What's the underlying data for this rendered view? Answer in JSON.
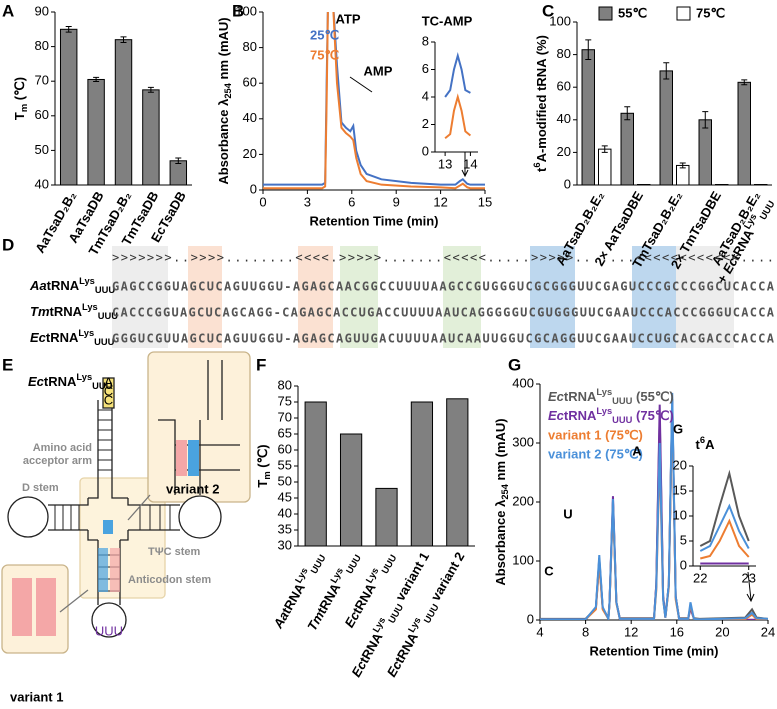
{
  "panel_labels": [
    "A",
    "B",
    "C",
    "D",
    "E",
    "F",
    "G"
  ],
  "chart_data": [
    {
      "type": "bar",
      "ylabel": {
        "base": "T",
        "sub": "m",
        "suffix": " (℃)"
      },
      "categories": [
        "AaTsaD₂B₂",
        "AaTsaDB",
        "TmTsaD₂B₂",
        "TmTsaDB",
        "EcTsaDB"
      ],
      "values": [
        85,
        70.5,
        82,
        67.5,
        47
      ],
      "errors": [
        0.8,
        0.6,
        0.8,
        0.7,
        0.8
      ],
      "color": "#808080",
      "ylim": [
        40,
        90
      ],
      "yticks": [
        40,
        50,
        60,
        70,
        80,
        90
      ]
    },
    {
      "type": "line",
      "xlabel": "Retention Time (min)",
      "ylabel": {
        "base": "Absorbance λ",
        "sub": "254",
        "suffix": " nm (mAU)"
      },
      "annotations": [
        "ATP",
        "AMP"
      ],
      "x": [
        0,
        4,
        4.2,
        4.3,
        4.4,
        4.7,
        5,
        5.3,
        5.6,
        5.9,
        6.1,
        6.3,
        6.6,
        7,
        8,
        10,
        12,
        13,
        13.3,
        13.5,
        13.8,
        14,
        15
      ],
      "series": [
        {
          "name": "25℃",
          "color": "#4472c4",
          "values": [
            3,
            3,
            4,
            60,
            110,
            110,
            70,
            38,
            35,
            33,
            36,
            22,
            14,
            9,
            6,
            4,
            3,
            3,
            5,
            6,
            3.5,
            3,
            3
          ]
        },
        {
          "name": "75℃",
          "color": "#ed7d31",
          "values": [
            1,
            1,
            2,
            50,
            110,
            110,
            60,
            35,
            32,
            30,
            28,
            18,
            9,
            5,
            3,
            2,
            1.5,
            1,
            2.5,
            3.5,
            1.5,
            1,
            1
          ]
        }
      ],
      "xlim": [
        0,
        15
      ],
      "xticks": [
        0,
        3,
        6,
        9,
        12,
        15
      ],
      "ylim": [
        0,
        100
      ],
      "yticks": [
        0,
        20,
        40,
        60,
        80,
        100
      ],
      "inset": {
        "title": "TC-AMP",
        "x": [
          13,
          13.2,
          13.35,
          13.5,
          13.65,
          13.8,
          14
        ],
        "series": [
          {
            "color": "#4472c4",
            "values": [
              4,
              4.5,
              6,
              7,
              6,
              4.5,
              4.3
            ]
          },
          {
            "color": "#ed7d31",
            "values": [
              1,
              1.3,
              3,
              4,
              3,
              1.5,
              1.2
            ]
          }
        ],
        "xlim": [
          12.6,
          14.3
        ],
        "xticks": [
          13,
          14
        ],
        "ylim": [
          0,
          8
        ],
        "yticks": [
          0,
          2,
          4,
          6,
          8
        ]
      }
    },
    {
      "type": "grouped_bar",
      "ylabel": {
        "base": "t",
        "sup": "6",
        "suffix": "A-modified tRNA (%)"
      },
      "categories": [
        "AaTsaD₂B₂E₂",
        "2× AaTsaDBE",
        "TmTsaD₂B₂E₂",
        "2× TmTsaDBE",
        [
          "AaTsaD₂B₂E₂",
          {
            "prefix": "+ ",
            "species": "Ec",
            "base": "tRNA",
            "sup": "Lys",
            "sub": "UUU"
          }
        ]
      ],
      "series": [
        {
          "name": "55℃",
          "color": "#808080",
          "values": [
            83,
            44,
            70,
            40,
            63
          ],
          "errors": [
            6,
            4,
            5,
            5,
            1.5
          ]
        },
        {
          "name": "75℃",
          "color": "#ffffff",
          "values": [
            22,
            0.3,
            12,
            0.3,
            0.3
          ],
          "errors": [
            2,
            0,
            1.5,
            0,
            0
          ]
        }
      ],
      "ylim": [
        0,
        100
      ],
      "yticks": [
        0,
        20,
        40,
        60,
        80,
        100
      ]
    },
    {
      "type": "bar",
      "ylabel": {
        "base": "T",
        "sub": "m",
        "suffix": " (℃)"
      },
      "categories": [
        {
          "species": "Aa",
          "base": "tRNA",
          "sup": "Lys",
          "sub": "UUU"
        },
        {
          "species": "Tm",
          "base": "tRNA",
          "sup": "Lys",
          "sub": "UUU"
        },
        {
          "species": "Ec",
          "base": "tRNA",
          "sup": "Lys",
          "sub": "UUU"
        },
        {
          "species": "Ec",
          "base": "tRNA",
          "sup": "Lys",
          "sub": "UUU",
          "suffix": " variant 1"
        },
        {
          "species": "Ec",
          "base": "tRNA",
          "sup": "Lys",
          "sub": "UUU",
          "suffix": " variant 2"
        }
      ],
      "values": [
        75,
        65,
        48,
        75,
        76
      ],
      "color": "#808080",
      "ylim": [
        30,
        80
      ],
      "yticks": [
        30,
        35,
        40,
        45,
        50,
        55,
        60,
        65,
        70,
        75,
        80
      ]
    },
    {
      "type": "line",
      "xlabel": "Retention Time (min)",
      "ylabel": {
        "base": "Absorbance λ",
        "sub": "254",
        "suffix": " nm (mAU)"
      },
      "annotations": [
        "C",
        "U",
        "A",
        "G"
      ],
      "x": [
        4,
        8,
        8.9,
        9.2,
        9.5,
        10,
        10.1,
        10.4,
        10.7,
        11,
        14,
        14.2,
        14.5,
        14.8,
        15,
        15.3,
        15.6,
        15.9,
        16.2,
        17,
        17.2,
        17.5,
        18,
        22,
        22.6,
        23,
        24
      ],
      "series": [
        {
          "name": {
            "species": "Ec",
            "base": "tRNA",
            "sup": "Lys",
            "sub": "UUU",
            "suffix": " (55℃)"
          },
          "color": "#595959",
          "values": [
            2,
            2,
            20,
            105,
            20,
            3,
            30,
            200,
            30,
            3,
            3,
            60,
            345,
            40,
            5,
            60,
            375,
            40,
            3,
            3,
            20,
            3,
            2,
            4,
            18,
            4,
            2
          ]
        },
        {
          "name": {
            "species": "Ec",
            "base": "tRNA",
            "sup": "Lys",
            "sub": "UUU",
            "suffix": " (75℃)"
          },
          "color": "#7030a0",
          "values": [
            1,
            1,
            20,
            100,
            20,
            2,
            30,
            210,
            30,
            2,
            2,
            60,
            365,
            40,
            4,
            60,
            370,
            40,
            2,
            2,
            20,
            2,
            1,
            0.5,
            0.5,
            0.5,
            0.5
          ]
        },
        {
          "name": "variant 1 (75℃)",
          "color": "#ed7d31",
          "values": [
            1,
            1,
            18,
            95,
            18,
            2,
            28,
            195,
            28,
            2,
            2,
            50,
            280,
            35,
            4,
            55,
            365,
            35,
            2,
            2,
            25,
            2,
            1,
            1.5,
            9,
            1.5,
            1
          ]
        },
        {
          "name": "variant 2 (75℃)",
          "color": "#4a90d9",
          "values": [
            1,
            1,
            22,
            110,
            22,
            2,
            30,
            205,
            30,
            2,
            2,
            55,
            300,
            35,
            4,
            60,
            385,
            40,
            2,
            2,
            30,
            2,
            1,
            3,
            12,
            3,
            2
          ]
        }
      ],
      "xlim": [
        4,
        24
      ],
      "xticks": [
        4,
        8,
        12,
        16,
        20,
        24
      ],
      "ylim": [
        0,
        400
      ],
      "yticks": [
        0,
        100,
        200,
        300,
        400
      ],
      "inset": {
        "title": {
          "base": "t",
          "sup": "6",
          "suffix": "A"
        },
        "x": [
          22,
          22.2,
          22.4,
          22.6,
          22.8,
          23
        ],
        "series": [
          {
            "color": "#595959",
            "values": [
              4,
              5,
              12,
              18.5,
              10,
              5
            ]
          },
          {
            "color": "#7030a0",
            "values": [
              0.5,
              0.5,
              0.5,
              0.5,
              0.5,
              0.5
            ]
          },
          {
            "color": "#ed7d31",
            "values": [
              1.5,
              2,
              5,
              9,
              4,
              1.8
            ]
          },
          {
            "color": "#4a90d9",
            "values": [
              3,
              4,
              8,
              12,
              7,
              3.5
            ]
          }
        ],
        "xlim": [
          21.85,
          23.15
        ],
        "xticks": [
          22,
          23
        ],
        "ylim": [
          0,
          20
        ],
        "yticks": [
          0,
          5,
          10,
          15,
          20
        ]
      }
    }
  ],
  "alignment": {
    "structure": ">>>>>>>..>>>>........<<<<.>>>>>.......<<<<<.....>>>>>.......<<<<<<<<<<<<....",
    "rows": [
      {
        "label": {
          "species": "Aa",
          "base": "tRNA",
          "sup": "Lys",
          "sub": "UUU"
        },
        "sequence": "GAGCCGGUAGCUCAGUUGGU-AGAGCAACGGCCUUUUAAGCCGUGGGUCGCGGGUUCGAGUCCCGCCCGGCUCACCA"
      },
      {
        "label": {
          "species": "Tm",
          "base": "tRNA",
          "sup": "Lys",
          "sub": "UUU"
        },
        "sequence": "CACCCGGUAGCUCAGCAGG-CAGAGCACCUGACCUUUUAAUCAGGGGGUCGUGGGUUCGAAUCCCACCCGGGUCACCA"
      },
      {
        "label": {
          "species": "Ec",
          "base": "tRNA",
          "sup": "Lys",
          "sub": "UUU"
        },
        "sequence": "GGGUCGUUAGCUCAGUUGGU-AGAGCAGUUGACUUUUAAUCAAUUGGUCGCAGGUUCGAAUCCUGCACGACCCACCA"
      }
    ]
  },
  "diagram": {
    "title": {
      "species": "Ec",
      "base": "tRNA",
      "sup": "Lys",
      "sub": "UUU"
    },
    "acceptor_label": [
      "Amino acid",
      "acceptor arm"
    ],
    "d_stem": "D stem",
    "tpsic_stem": "TΨC stem",
    "anticodon_stem": "Anticodon stem",
    "acceptor_end": [
      "A",
      "C",
      "C"
    ],
    "anticodon": "UUU",
    "variant1": "variant 1",
    "variant2": "variant 2"
  }
}
